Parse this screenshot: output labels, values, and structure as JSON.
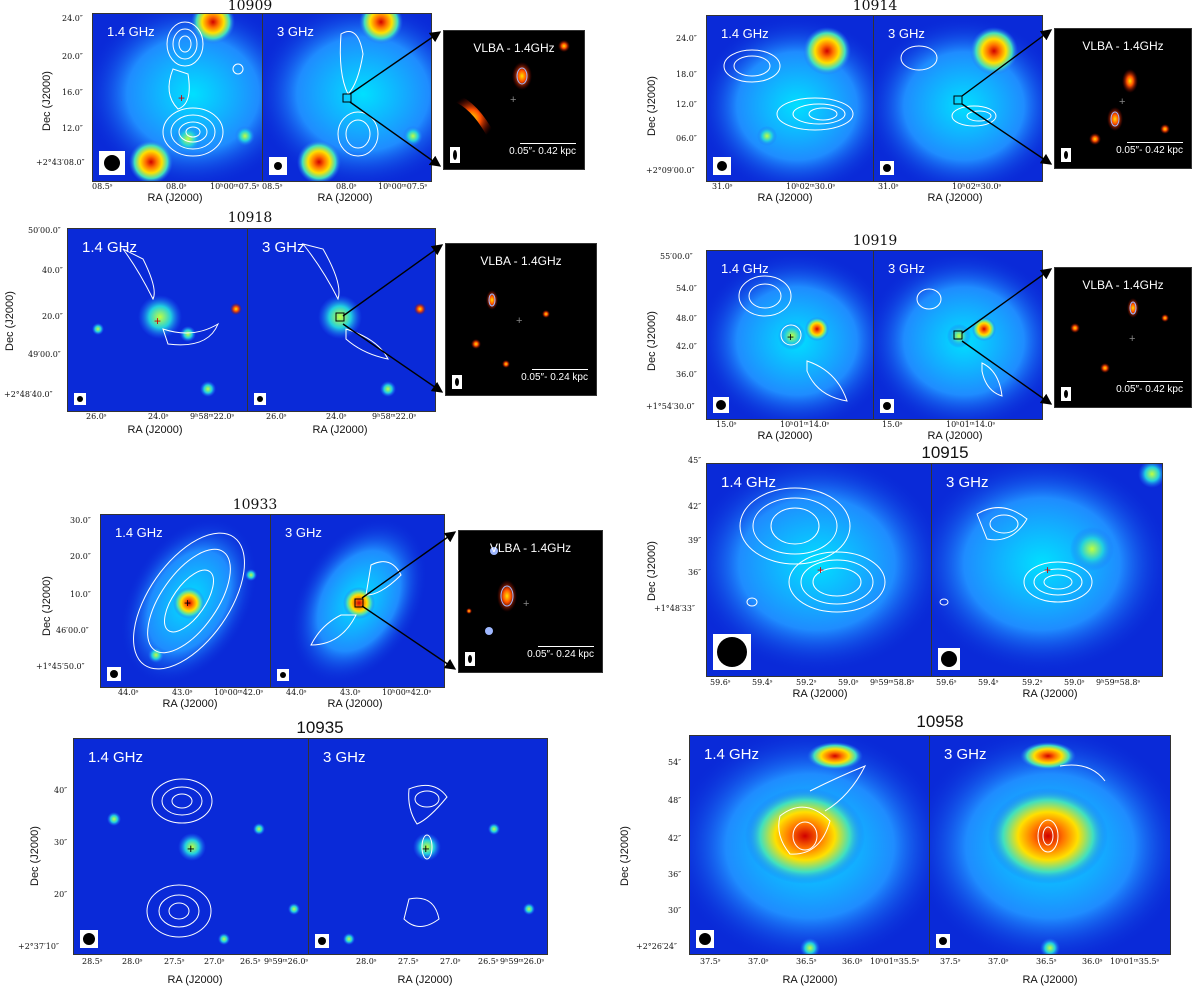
{
  "figures": {
    "f10909": {
      "title": "10909",
      "freq1": "1.4 GHz",
      "freq2": "3 GHz",
      "vlba": "VLBA - 1.4GHz",
      "scale": "0.05″- 0.42 kpc",
      "xlabel": "RA (J2000)",
      "ylabel": "Dec (J2000)",
      "yticks": [
        "24.0″",
        "20.0″",
        "16.0″",
        "12.0″",
        "+2°43′08.0″"
      ],
      "xticks": [
        "08.5ˢ",
        "08.0ˢ",
        "10ʰ00ᵐ07.5ˢ",
        "08.5ˢ",
        "08.0ˢ",
        "10ʰ00ᵐ07.5ˢ"
      ]
    },
    "f10914": {
      "title": "10914",
      "freq1": "1.4 GHz",
      "freq2": "3 GHz",
      "vlba": "VLBA - 1.4GHz",
      "scale": "0.05″- 0.42 kpc",
      "xlabel": "RA (J2000)",
      "ylabel": "Dec (J2000)",
      "yticks": [
        "24.0″",
        "18.0″",
        "12.0″",
        "06.0″",
        "+2°09′00.0″"
      ],
      "xticks": [
        "31.0ˢ",
        "10ʰ02ᵐ30.0ˢ",
        "31.0ˢ",
        "10ʰ02ᵐ30.0ˢ"
      ]
    },
    "f10918": {
      "title": "10918",
      "freq1": "1.4 GHz",
      "freq2": "3 GHz",
      "vlba": "VLBA - 1.4GHz",
      "scale": "0.05″- 0.24 kpc",
      "xlabel": "RA (J2000)",
      "ylabel": "Dec (J2000)",
      "yticks": [
        "50′00.0″",
        "40.0″",
        "20.0″",
        "49′00.0″",
        "+2°48′40.0″"
      ],
      "xticks": [
        "26.0ˢ",
        "24.0ˢ",
        "9ʰ58ᵐ22.0ˢ",
        "26.0ˢ",
        "24.0ˢ",
        "9ʰ58ᵐ22.0ˢ"
      ]
    },
    "f10919": {
      "title": "10919",
      "freq1": "1.4 GHz",
      "freq2": "3 GHz",
      "vlba": "VLBA - 1.4GHz",
      "scale": "0.05″- 0.42 kpc",
      "xlabel": "RA (J2000)",
      "ylabel": "Dec (J2000)",
      "yticks": [
        "55′00.0″",
        "54.0″",
        "48.0″",
        "42.0″",
        "36.0″",
        "+1°54′30.0″"
      ],
      "xticks": [
        "15.0ˢ",
        "10ʰ01ᵐ14.0ˢ",
        "15.0ˢ",
        "10ʰ01ᵐ14.0ˢ"
      ]
    },
    "f10933": {
      "title": "10933",
      "freq1": "1.4 GHz",
      "freq2": "3 GHz",
      "vlba": "VLBA - 1.4GHz",
      "scale": "0.05″- 0.24 kpc",
      "xlabel": "RA (J2000)",
      "ylabel": "Dec (J2000)",
      "yticks": [
        "30.0″",
        "20.0″",
        "10.0″",
        "46′00.0″",
        "+1°45′50.0″"
      ],
      "xticks": [
        "44.0ˢ",
        "43.0ˢ",
        "10ʰ00ᵐ42.0ˢ",
        "44.0ˢ",
        "43.0ˢ",
        "10ʰ00ᵐ42.0ˢ"
      ]
    },
    "f10915": {
      "title": "10915",
      "freq1": "1.4 GHz",
      "freq2": "3 GHz",
      "xlabel": "RA (J2000)",
      "ylabel": "Dec (J2000)",
      "yticks": [
        "45″",
        "42″",
        "39″",
        "36″",
        "+1°48′33″"
      ],
      "xticks": [
        "59.6ˢ",
        "59.4ˢ",
        "59.2ˢ",
        "59.0ˢ",
        "9ʰ59ᵐ58.8ˢ",
        "59.6ˢ",
        "59.4ˢ",
        "59.2ˢ",
        "59.0ˢ",
        "9ʰ59ᵐ58.8ˢ"
      ]
    },
    "f10935": {
      "title": "10935",
      "freq1": "1.4 GHz",
      "freq2": "3 GHz",
      "xlabel": "RA (J2000)",
      "ylabel": "Dec (J2000)",
      "yticks": [
        "40″",
        "30″",
        "20″",
        "+2°37′10″"
      ],
      "xticks": [
        "28.5ˢ",
        "28.0ˢ",
        "27.5ˢ",
        "27.0ˢ",
        "26.5ˢ",
        "9ʰ59ᵐ26.0ˢ",
        "28.0ˢ",
        "27.5ˢ",
        "27.0ˢ",
        "26.5ˢ",
        "9ʰ59ᵐ26.0ˢ"
      ]
    },
    "f10958": {
      "title": "10958",
      "freq1": "1.4 GHz",
      "freq2": "3 GHz",
      "xlabel": "RA (J2000)",
      "ylabel": "Dec (J2000)",
      "yticks": [
        "54″",
        "48″",
        "42″",
        "36″",
        "30″",
        "+2°26′24″"
      ],
      "xticks": [
        "37.5ˢ",
        "37.0ˢ",
        "36.5ˢ",
        "36.0ˢ",
        "10ʰ01ᵐ35.5ˢ",
        "37.5ˢ",
        "37.0ˢ",
        "36.5ˢ",
        "36.0ˢ",
        "10ʰ01ᵐ35.5ˢ"
      ]
    }
  }
}
